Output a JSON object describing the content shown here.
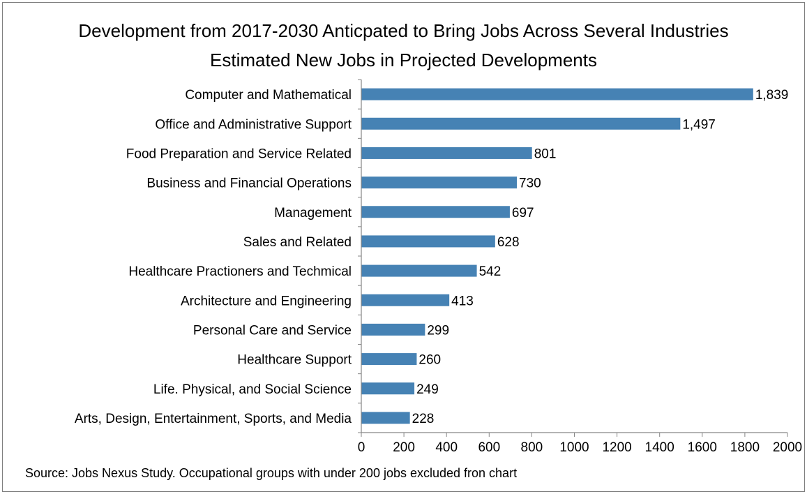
{
  "chart_data": {
    "type": "bar",
    "orientation": "horizontal",
    "title": "Development from 2017-2030 Anticpated to Bring Jobs Across Several Industries",
    "subtitle": "Estimated New Jobs in Projected Developments",
    "categories": [
      "Computer and Mathematical",
      "Office and Administrative Support",
      "Food Preparation and Service Related",
      "Business and Financial Operations",
      "Management",
      "Sales and Related",
      "Healthcare Practioners and Techmical",
      "Architecture and Engineering",
      "Personal Care and Service",
      "Healthcare Support",
      "Life. Physical, and Social Science",
      "Arts, Design, Entertainment, Sports, and Media"
    ],
    "values": [
      1839,
      1497,
      801,
      730,
      697,
      628,
      542,
      413,
      299,
      260,
      249,
      228
    ],
    "value_labels": [
      "1,839",
      "1,497",
      "801",
      "730",
      "697",
      "628",
      "542",
      "413",
      "299",
      "260",
      "249",
      "228"
    ],
    "x_ticks": [
      "0",
      "200",
      "400",
      "600",
      "800",
      "1000",
      "1200",
      "1400",
      "1600",
      "1800",
      "2000"
    ],
    "xlim": [
      0,
      2000
    ],
    "xlabel": "",
    "ylabel": "",
    "grid": false,
    "legend": "none",
    "bar_color": "#4682b4",
    "source": "Source: Jobs Nexus Study. Occupational groups with under 200 jobs excluded fron chart"
  }
}
